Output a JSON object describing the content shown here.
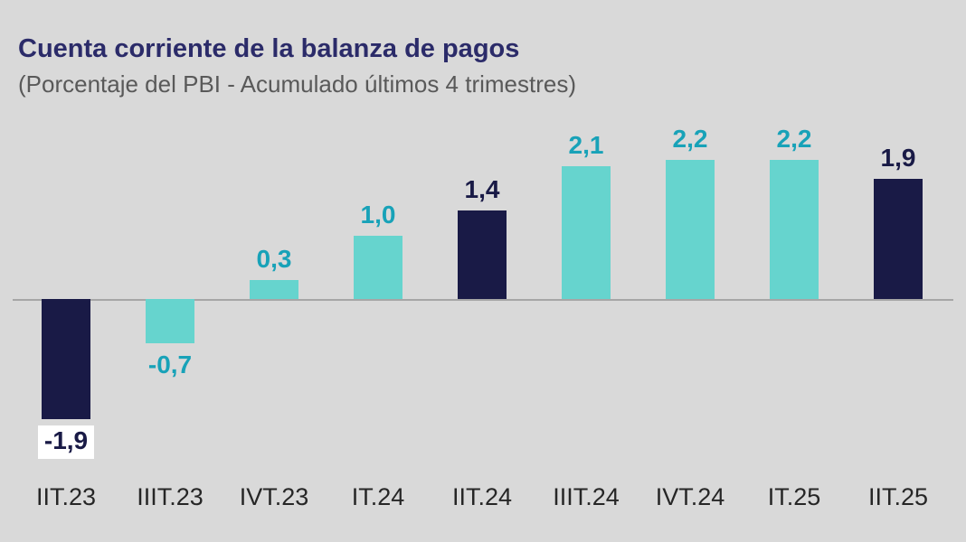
{
  "chart_data": {
    "type": "bar",
    "title": "Cuenta corriente de la balanza de pagos",
    "subtitle": "(Porcentaje del PBI - Acumulado últimos 4 trimestres)",
    "categories": [
      "IIT.23",
      "IIIT.23",
      "IVT.23",
      "IT.24",
      "IIT.24",
      "IIIT.24",
      "IVT.24",
      "IT.25",
      "IIT.25"
    ],
    "values": [
      -1.9,
      -0.7,
      0.3,
      1.0,
      1.4,
      2.1,
      2.2,
      2.2,
      1.9
    ],
    "value_labels": [
      "-1,9",
      "-0,7",
      "0,3",
      "1,0",
      "1,4",
      "2,1",
      "2,2",
      "2,2",
      "1,9"
    ],
    "bar_colors": [
      "navy",
      "teal",
      "teal",
      "teal",
      "navy",
      "teal",
      "teal",
      "teal",
      "navy"
    ],
    "boxed_label_index": 0,
    "xlabel": "",
    "ylabel": "",
    "ylim": [
      -2.7,
      3.0
    ],
    "grid": false,
    "legend": false,
    "palette": {
      "navy": "#191a46",
      "teal": "#66d4ce"
    },
    "label_colors": {
      "navy": "#191a46",
      "teal": "#18a2b8"
    },
    "background_color": "#d9d9d9",
    "title_color": "#2b2b69",
    "subtitle_color": "#595959",
    "axis_line_color": "#a6a6a6",
    "xtick_color": "#262626"
  }
}
